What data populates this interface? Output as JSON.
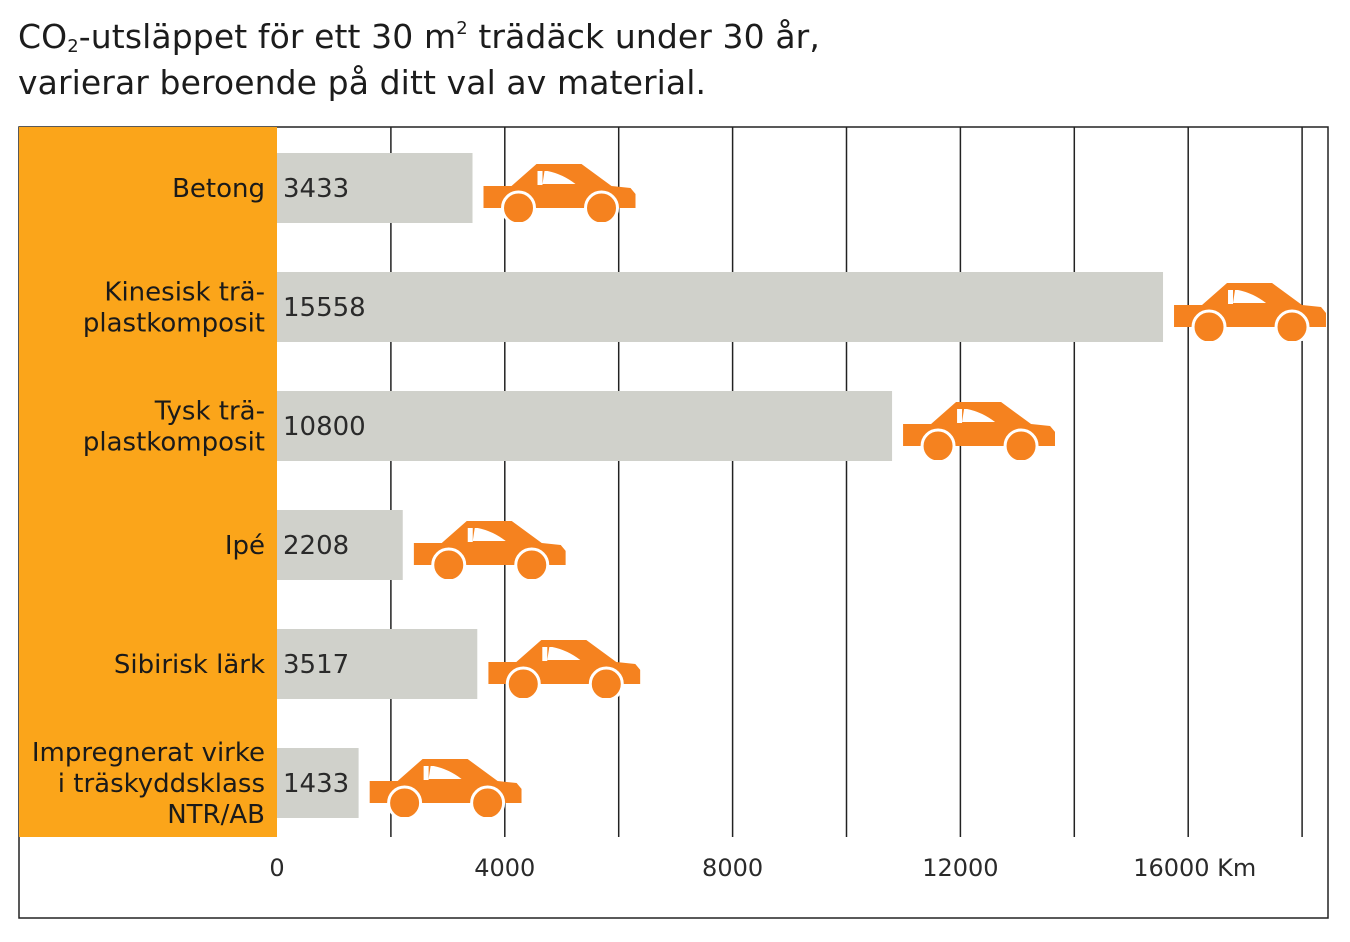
{
  "header": {
    "title_pre": "CO",
    "title_sub": "2",
    "title_mid": "-utsläppet för ett 30 m",
    "title_sup": "2",
    "title_post": " trädäck under 30 år,",
    "title_line2": "varierar beroende på ditt val av material."
  },
  "colors": {
    "accent_orange": "#FBA51A",
    "car_orange": "#F5821F",
    "bar_gray": "#D0D1CB",
    "grid": "#222222"
  },
  "icon": "car-icon",
  "chart_data": {
    "type": "bar",
    "orientation": "horizontal",
    "title": "CO2-utsläppet för ett 30 m2 trädäck under 30 år, varierar beroende på ditt val av material.",
    "categories": [
      [
        "Betong"
      ],
      [
        "Kinesisk trä-",
        "plastkomposit"
      ],
      [
        "Tysk trä-",
        "plastkomposit"
      ],
      [
        "Ipé"
      ],
      [
        "Sibirisk lärk"
      ],
      [
        "Impregnerat virke",
        "i träskyddsklass",
        "NTR/AB"
      ]
    ],
    "values": [
      3433,
      15558,
      10800,
      2208,
      3517,
      1433
    ],
    "xlim": [
      0,
      18000
    ],
    "ticks": [
      {
        "value": 0,
        "label": "0"
      },
      {
        "value": 4000,
        "label": "4000"
      },
      {
        "value": 8000,
        "label": "8000"
      },
      {
        "value": 12000,
        "label": "12000"
      },
      {
        "value": 16000,
        "label": "16000 Km"
      }
    ],
    "grid": true
  }
}
